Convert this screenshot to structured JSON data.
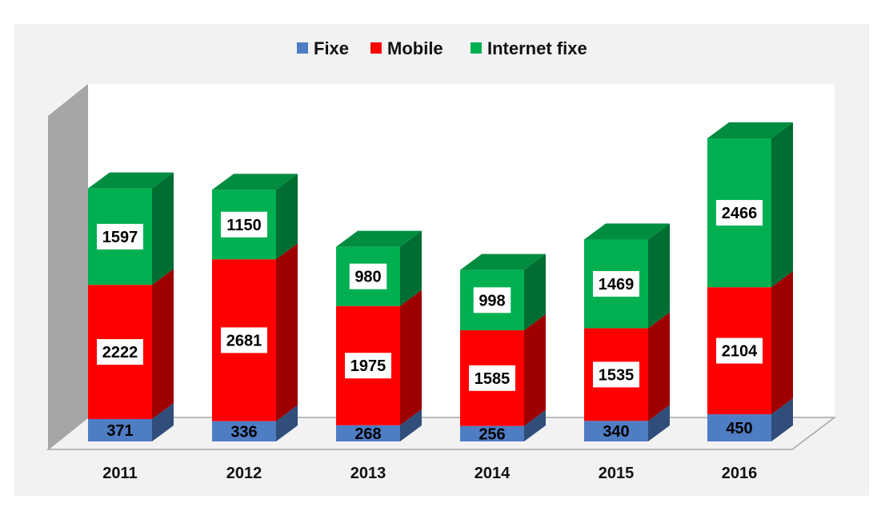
{
  "chart_data": {
    "type": "bar",
    "stacked": true,
    "three_d": true,
    "categories": [
      "2011",
      "2012",
      "2013",
      "2014",
      "2015",
      "2016"
    ],
    "series": [
      {
        "name": "Fixe",
        "values": [
          371,
          336,
          268,
          256,
          340,
          450
        ],
        "color": "#4f7dc4"
      },
      {
        "name": "Mobile",
        "values": [
          2222,
          2681,
          1975,
          1585,
          1535,
          2104
        ],
        "color": "#ff0000"
      },
      {
        "name": "Internet fixe",
        "values": [
          1597,
          1150,
          980,
          998,
          1469,
          2466
        ],
        "color": "#00b050"
      }
    ],
    "legend_position": "top-center",
    "grid": false,
    "ylim": [
      0,
      5100
    ]
  }
}
